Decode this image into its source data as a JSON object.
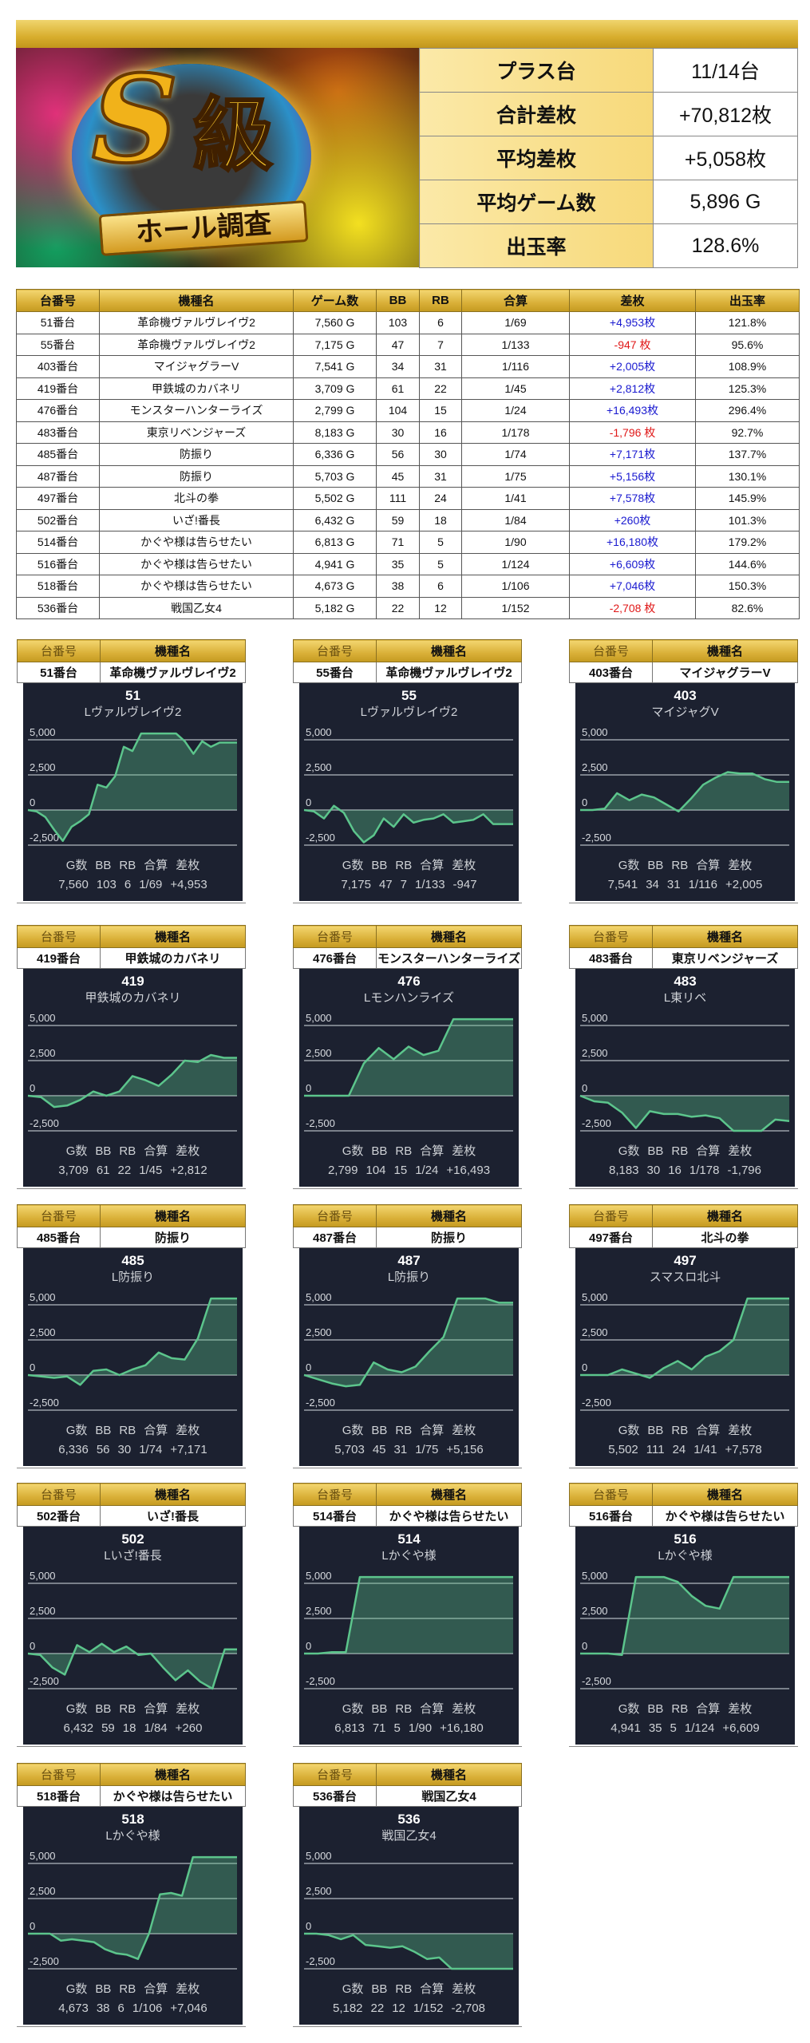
{
  "logo": {
    "main": "S級",
    "ribbon": "ホール調査"
  },
  "summary": [
    {
      "label": "プラス台",
      "value": "11/14台"
    },
    {
      "label": "合計差枚",
      "value": "+70,812枚"
    },
    {
      "label": "平均差枚",
      "value": "+5,058枚"
    },
    {
      "label": "平均ゲーム数",
      "value": "5,896 G"
    },
    {
      "label": "出玉率",
      "value": "128.6%"
    }
  ],
  "colors": {
    "positive": "#1a1ad0",
    "negative": "#e01818",
    "line": "#5cc58c",
    "panel": "#1c2130",
    "gold": "#d9b038"
  },
  "table": {
    "headers": [
      "台番号",
      "機種名",
      "ゲーム数",
      "BB",
      "RB",
      "合算",
      "差枚",
      "出玉率"
    ],
    "rows": [
      [
        "51番台",
        "革命機ヴァルヴレイヴ2",
        "7,560 G",
        "103",
        "6",
        "1/69",
        "+4,953枚",
        "121.8%"
      ],
      [
        "55番台",
        "革命機ヴァルヴレイヴ2",
        "7,175 G",
        "47",
        "7",
        "1/133",
        "-947 枚",
        "95.6%"
      ],
      [
        "403番台",
        "マイジャグラーV",
        "7,541 G",
        "34",
        "31",
        "1/116",
        "+2,005枚",
        "108.9%"
      ],
      [
        "419番台",
        "甲鉄城のカバネリ",
        "3,709 G",
        "61",
        "22",
        "1/45",
        "+2,812枚",
        "125.3%"
      ],
      [
        "476番台",
        "モンスターハンターライズ",
        "2,799 G",
        "104",
        "15",
        "1/24",
        "+16,493枚",
        "296.4%"
      ],
      [
        "483番台",
        "東京リベンジャーズ",
        "8,183 G",
        "30",
        "16",
        "1/178",
        "-1,796 枚",
        "92.7%"
      ],
      [
        "485番台",
        "防振り",
        "6,336 G",
        "56",
        "30",
        "1/74",
        "+7,171枚",
        "137.7%"
      ],
      [
        "487番台",
        "防振り",
        "5,703 G",
        "45",
        "31",
        "1/75",
        "+5,156枚",
        "130.1%"
      ],
      [
        "497番台",
        "北斗の拳",
        "5,502 G",
        "111",
        "24",
        "1/41",
        "+7,578枚",
        "145.9%"
      ],
      [
        "502番台",
        "いざ!番長",
        "6,432 G",
        "59",
        "18",
        "1/84",
        "+260枚",
        "101.3%"
      ],
      [
        "514番台",
        "かぐや様は告らせたい",
        "6,813 G",
        "71",
        "5",
        "1/90",
        "+16,180枚",
        "179.2%"
      ],
      [
        "516番台",
        "かぐや様は告らせたい",
        "4,941 G",
        "35",
        "5",
        "1/124",
        "+6,609枚",
        "144.6%"
      ],
      [
        "518番台",
        "かぐや様は告らせたい",
        "4,673 G",
        "38",
        "6",
        "1/106",
        "+7,046枚",
        "150.3%"
      ],
      [
        "536番台",
        "戦国乙女4",
        "5,182 G",
        "22",
        "12",
        "1/152",
        "-2,708 枚",
        "82.6%"
      ]
    ]
  },
  "card_headers": [
    "台番号",
    "機種名"
  ],
  "stat_headers": [
    "G数",
    "BB",
    "RB",
    "合算",
    "差枚"
  ],
  "y_ticks": [
    "5,000",
    "2,500",
    "0",
    "-2,500"
  ],
  "chart_data": [
    {
      "type": "area",
      "machine": "51番台",
      "name": "革命機ヴァルヴレイヴ2",
      "num": "51",
      "label": "Lヴァルヴレイヴ2",
      "stats": [
        "7,560",
        "103",
        "6",
        "1/69",
        "+4,953"
      ],
      "ylim": [
        -2500,
        5000
      ],
      "yticks": [
        5000,
        2500,
        0,
        -2500
      ],
      "values": [
        0,
        -100,
        -500,
        -1400,
        -2200,
        -1200,
        -800,
        -300,
        1800,
        1600,
        2400,
        4500,
        4200,
        5450,
        5450,
        5450,
        5450,
        5450,
        4900,
        4000,
        4900,
        4500,
        4800,
        4800,
        4800
      ]
    },
    {
      "type": "area",
      "machine": "55番台",
      "name": "革命機ヴァルヴレイヴ2",
      "num": "55",
      "label": "Lヴァルヴレイヴ2",
      "stats": [
        "7,175",
        "47",
        "7",
        "1/133",
        "-947"
      ],
      "ylim": [
        -2500,
        5000
      ],
      "yticks": [
        5000,
        2500,
        0,
        -2500
      ],
      "values": [
        0,
        -100,
        -600,
        300,
        -200,
        -1500,
        -2300,
        -1800,
        -600,
        -1200,
        -300,
        -900,
        -700,
        -600,
        -300,
        -900,
        -800,
        -700,
        -300,
        -1000,
        -1000,
        -1000
      ]
    },
    {
      "type": "area",
      "machine": "403番台",
      "name": "マイジャグラーV",
      "num": "403",
      "label": "マイジャグV",
      "stats": [
        "7,541",
        "34",
        "31",
        "1/116",
        "+2,005"
      ],
      "ylim": [
        -2500,
        5000
      ],
      "yticks": [
        5000,
        2500,
        0,
        -2500
      ],
      "values": [
        0,
        0,
        100,
        1200,
        700,
        1100,
        900,
        400,
        -100,
        800,
        1800,
        2300,
        2700,
        2600,
        2600,
        2200,
        2000,
        2000
      ]
    },
    {
      "type": "area",
      "machine": "419番台",
      "name": "甲鉄城のカバネリ",
      "num": "419",
      "label": "甲鉄城のカバネリ",
      "stats": [
        "3,709",
        "61",
        "22",
        "1/45",
        "+2,812"
      ],
      "ylim": [
        -2500,
        5000
      ],
      "yticks": [
        5000,
        2500,
        0,
        -2500
      ],
      "values": [
        0,
        -100,
        -800,
        -700,
        -300,
        300,
        0,
        300,
        1400,
        1100,
        700,
        1500,
        2500,
        2400,
        2900,
        2700,
        2700
      ]
    },
    {
      "type": "area",
      "machine": "476番台",
      "name": "モンスターハンターライズ",
      "num": "476",
      "label": "Lモンハンライズ",
      "stats": [
        "2,799",
        "104",
        "15",
        "1/24",
        "+16,493"
      ],
      "ylim": [
        -2500,
        5000
      ],
      "yticks": [
        5000,
        2500,
        0,
        -2500
      ],
      "values": [
        0,
        0,
        0,
        0,
        2300,
        3400,
        2600,
        3500,
        2900,
        3200,
        5450,
        5450,
        5450,
        5450,
        5450
      ]
    },
    {
      "type": "area",
      "machine": "483番台",
      "name": "東京リベンジャーズ",
      "num": "483",
      "label": "L東リベ",
      "stats": [
        "8,183",
        "30",
        "16",
        "1/178",
        "-1,796"
      ],
      "ylim": [
        -2500,
        5000
      ],
      "yticks": [
        5000,
        2500,
        0,
        -2500
      ],
      "values": [
        0,
        -400,
        -500,
        -1200,
        -2300,
        -1100,
        -1300,
        -1300,
        -1500,
        -1400,
        -1600,
        -2500,
        -2500,
        -2500,
        -1700,
        -1800
      ]
    },
    {
      "type": "area",
      "machine": "485番台",
      "name": "防振り",
      "num": "485",
      "label": "L防振り",
      "stats": [
        "6,336",
        "56",
        "30",
        "1/74",
        "+7,171"
      ],
      "ylim": [
        -2500,
        5000
      ],
      "yticks": [
        5000,
        2500,
        0,
        -2500
      ],
      "values": [
        0,
        -100,
        -200,
        -100,
        -700,
        300,
        400,
        0,
        400,
        700,
        1600,
        1200,
        1100,
        2600,
        5450,
        5450,
        5450
      ]
    },
    {
      "type": "area",
      "machine": "487番台",
      "name": "防振り",
      "num": "487",
      "label": "L防振り",
      "stats": [
        "5,703",
        "45",
        "31",
        "1/75",
        "+5,156"
      ],
      "ylim": [
        -2500,
        5000
      ],
      "yticks": [
        5000,
        2500,
        0,
        -2500
      ],
      "values": [
        0,
        -300,
        -600,
        -800,
        -700,
        900,
        400,
        200,
        600,
        1700,
        2700,
        5450,
        5450,
        5450,
        5150,
        5150
      ]
    },
    {
      "type": "area",
      "machine": "497番台",
      "name": "北斗の拳",
      "num": "497",
      "label": "スマスロ北斗",
      "stats": [
        "5,502",
        "111",
        "24",
        "1/41",
        "+7,578"
      ],
      "ylim": [
        -2500,
        5000
      ],
      "yticks": [
        5000,
        2500,
        0,
        -2500
      ],
      "values": [
        0,
        0,
        0,
        400,
        100,
        -200,
        500,
        1000,
        400,
        1300,
        1700,
        2500,
        5450,
        5450,
        5450,
        5450
      ]
    },
    {
      "type": "area",
      "machine": "502番台",
      "name": "いざ!番長",
      "num": "502",
      "label": "Lいざ!番長",
      "stats": [
        "6,432",
        "59",
        "18",
        "1/84",
        "+260"
      ],
      "ylim": [
        -2500,
        5000
      ],
      "yticks": [
        5000,
        2500,
        0,
        -2500
      ],
      "values": [
        0,
        -100,
        -1000,
        -1500,
        600,
        100,
        700,
        100,
        500,
        -100,
        0,
        -1000,
        -1900,
        -1200,
        -2000,
        -2500,
        300,
        300
      ]
    },
    {
      "type": "area",
      "machine": "514番台",
      "name": "かぐや様は告らせたい",
      "num": "514",
      "label": "Lかぐや様",
      "stats": [
        "6,813",
        "71",
        "5",
        "1/90",
        "+16,180"
      ],
      "ylim": [
        -2500,
        5000
      ],
      "yticks": [
        5000,
        2500,
        0,
        -2500
      ],
      "values": [
        0,
        0,
        100,
        100,
        5450,
        5450,
        5450,
        5450,
        5450,
        5450,
        5450,
        5450,
        5450,
        5450,
        5450,
        5450
      ]
    },
    {
      "type": "area",
      "machine": "516番台",
      "name": "かぐや様は告らせたい",
      "num": "516",
      "label": "Lかぐや様",
      "stats": [
        "4,941",
        "35",
        "5",
        "1/124",
        "+6,609"
      ],
      "ylim": [
        -2500,
        5000
      ],
      "yticks": [
        5000,
        2500,
        0,
        -2500
      ],
      "values": [
        0,
        0,
        0,
        -100,
        5450,
        5450,
        5450,
        5100,
        4100,
        3400,
        3200,
        5450,
        5450,
        5450,
        5450,
        5450
      ]
    },
    {
      "type": "area",
      "machine": "518番台",
      "name": "かぐや様は告らせたい",
      "num": "518",
      "label": "Lかぐや様",
      "stats": [
        "4,673",
        "38",
        "6",
        "1/106",
        "+7,046"
      ],
      "ylim": [
        -2500,
        5000
      ],
      "yticks": [
        5000,
        2500,
        0,
        -2500
      ],
      "values": [
        0,
        0,
        0,
        -500,
        -400,
        -500,
        -600,
        -1100,
        -1400,
        -1500,
        -1800,
        0,
        2800,
        2900,
        2700,
        5450,
        5450,
        5450,
        5450,
        5450
      ]
    },
    {
      "type": "area",
      "machine": "536番台",
      "name": "戦国乙女4",
      "num": "536",
      "label": "戦国乙女4",
      "stats": [
        "5,182",
        "22",
        "12",
        "1/152",
        "-2,708"
      ],
      "ylim": [
        -2500,
        5000
      ],
      "yticks": [
        5000,
        2500,
        0,
        -2500
      ],
      "values": [
        0,
        0,
        -100,
        -400,
        -100,
        -800,
        -900,
        -1000,
        -900,
        -1300,
        -1800,
        -1700,
        -2500,
        -2500,
        -2500,
        -2500,
        -2500,
        -2500
      ]
    }
  ]
}
